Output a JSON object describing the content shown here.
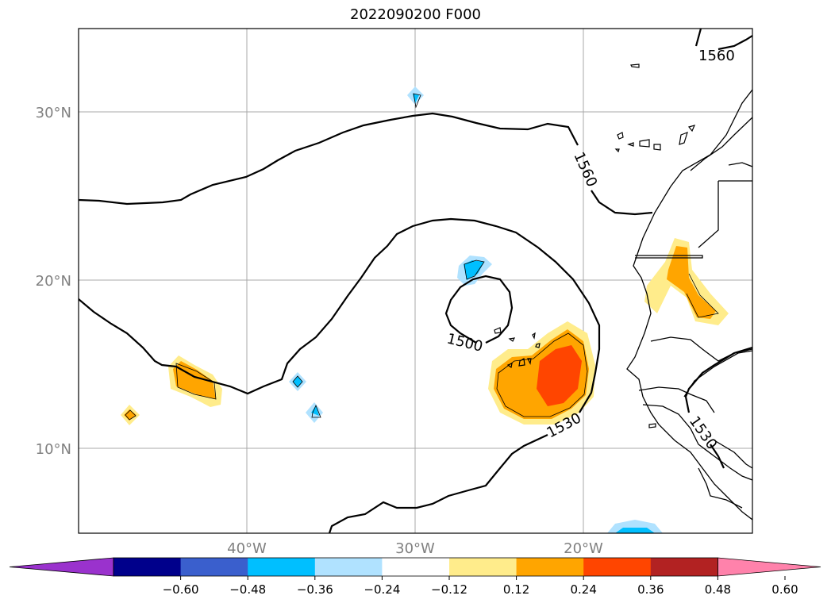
{
  "title": "2022090200 F000",
  "map": {
    "lat_labels": [
      "30°N",
      "20°N",
      "10°N"
    ],
    "lon_labels": [
      "40°W",
      "30°W",
      "20°W"
    ],
    "contour_labels": [
      "1560",
      "1560",
      "1500",
      "1530",
      "1530"
    ]
  },
  "colorbar": {
    "colors": [
      "#9a32cd",
      "#00008b",
      "#3a5fcd",
      "#00bfff",
      "#b0e2ff",
      "#ffffff",
      "#ffec8b",
      "#ffa500",
      "#ff4500",
      "#b22222",
      "#ff82ab"
    ],
    "tick_labels": [
      "−0.60",
      "−0.48",
      "−0.36",
      "−0.24",
      "−0.12",
      "0.12",
      "0.24",
      "0.36",
      "0.48",
      "0.60"
    ]
  }
}
